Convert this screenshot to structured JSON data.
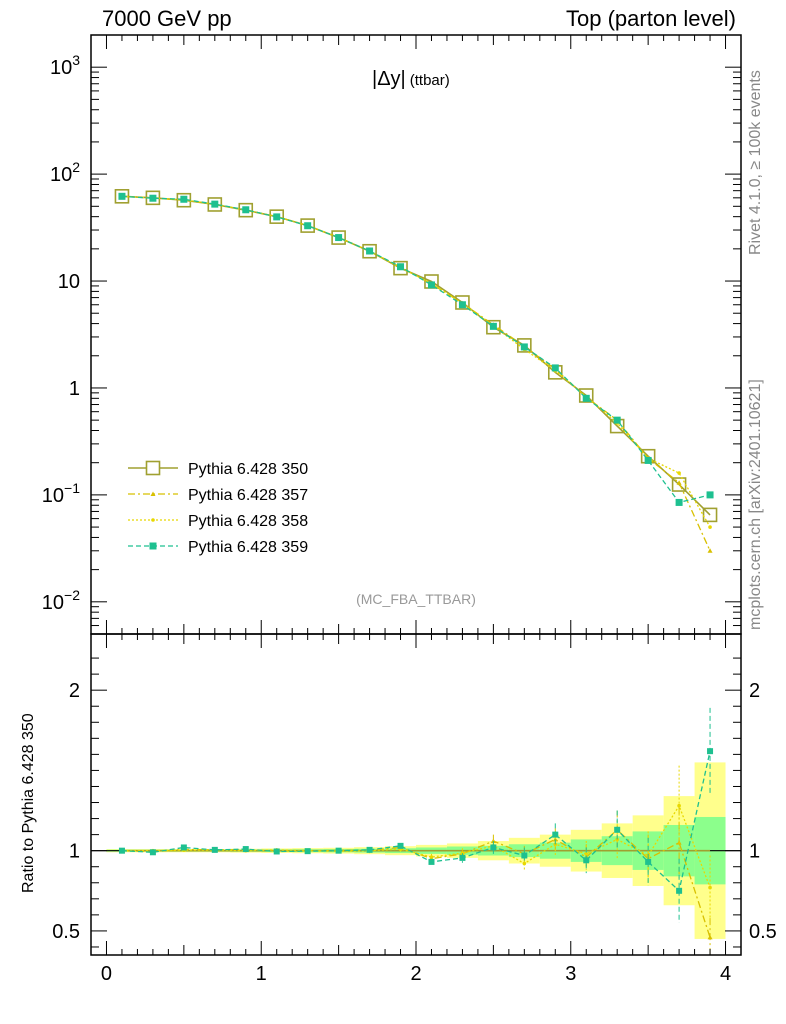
{
  "header": {
    "left": "7000 GeV pp",
    "right": "Top (parton level)"
  },
  "side_labels": {
    "rivet": "Rivet 4.1.0, ≥ 100k events",
    "mcplots": "mcplots.cern.ch [arXiv:2401.10621]"
  },
  "plot": {
    "title": "|Δy|",
    "title_suffix": "(ttbar)",
    "analysis": "(MC_FBA_TTBAR)"
  },
  "ratio": {
    "ylabel": "Ratio to Pythia 6.428 350"
  },
  "legend": [
    {
      "label": "Pythia 6.428 350"
    },
    {
      "label": "Pythia 6.428 357"
    },
    {
      "label": "Pythia 6.428 358"
    },
    {
      "label": "Pythia 6.428 359"
    }
  ],
  "chart_data": {
    "type": "line",
    "xlim": [
      -0.1,
      4.1
    ],
    "ylim_main": [
      0.005,
      2000
    ],
    "yscale_main": "log",
    "ylim_ratio": [
      0.35,
      2.35
    ],
    "x_ticks": [
      "0",
      "1",
      "2",
      "3",
      "4"
    ],
    "y_ticks_main": [
      {
        "v": 1000,
        "base": "10",
        "exp": "3"
      },
      {
        "v": 100,
        "base": "10",
        "exp": "2"
      },
      {
        "v": 10,
        "base": "10",
        "exp": ""
      },
      {
        "v": 1,
        "base": "1",
        "exp": ""
      },
      {
        "v": 0.1,
        "base": "10",
        "exp": "−1"
      },
      {
        "v": 0.01,
        "base": "10",
        "exp": "−2"
      }
    ],
    "y_ticks_ratio": [
      {
        "v": 2,
        "label": "2"
      },
      {
        "v": 1,
        "label": "1"
      },
      {
        "v": 0.5,
        "label": "0.5"
      }
    ],
    "x": [
      0.1,
      0.3,
      0.5,
      0.7,
      0.9,
      1.1,
      1.3,
      1.5,
      1.7,
      1.9,
      2.1,
      2.3,
      2.5,
      2.7,
      2.9,
      3.1,
      3.3,
      3.5,
      3.7,
      3.9
    ],
    "series": [
      {
        "name": "Pythia 6.428 350",
        "color": "#a0a030",
        "style": "solid",
        "marker": "open-square",
        "values": [
          62,
          60,
          57,
          52,
          46,
          40,
          33,
          25.5,
          19,
          13.2,
          9.9,
          6.3,
          3.7,
          2.5,
          1.4,
          0.85,
          0.44,
          0.23,
          0.125,
          0.065
        ]
      },
      {
        "name": "Pythia 6.428 357",
        "color": "#d8c000",
        "style": "dashdot",
        "marker": "small-triangle",
        "values": [
          62,
          59.6,
          57.4,
          52.3,
          46.2,
          40,
          33,
          25.6,
          19.1,
          13.5,
          9.4,
          6.2,
          3.9,
          2.45,
          1.5,
          0.82,
          0.5,
          0.22,
          0.13,
          0.03
        ],
        "ratio": [
          1.0,
          0.993,
          1.008,
          1.006,
          1.005,
          0.998,
          0.998,
          1.002,
          1.003,
          1.02,
          0.95,
          0.98,
          1.06,
          0.98,
          1.07,
          0.96,
          1.13,
          0.95,
          1.05,
          0.46
        ],
        "ratio_err": [
          0.01,
          0.01,
          0.01,
          0.01,
          0.01,
          0.01,
          0.01,
          0.01,
          0.015,
          0.015,
          0.02,
          0.03,
          0.04,
          0.05,
          0.07,
          0.08,
          0.12,
          0.15,
          0.22,
          0.12
        ]
      },
      {
        "name": "Pythia 6.428 358",
        "color": "#e8d800",
        "style": "dotted",
        "marker": "small-dot",
        "values": [
          62,
          60,
          57.2,
          52.2,
          46,
          40.2,
          33,
          25.4,
          19,
          13.3,
          9.5,
          6.2,
          3.8,
          2.3,
          1.45,
          0.83,
          0.47,
          0.22,
          0.16,
          0.05
        ],
        "ratio": [
          1.0,
          1.0,
          1.003,
          1.004,
          1.0,
          1.005,
          1.0,
          0.996,
          1.0,
          1.01,
          0.96,
          0.985,
          1.03,
          0.92,
          1.04,
          0.98,
          1.07,
          0.97,
          1.28,
          0.77
        ],
        "ratio_err": [
          0.01,
          0.01,
          0.01,
          0.01,
          0.01,
          0.01,
          0.01,
          0.01,
          0.015,
          0.015,
          0.02,
          0.03,
          0.04,
          0.05,
          0.07,
          0.08,
          0.12,
          0.15,
          0.25,
          0.2
        ]
      },
      {
        "name": "Pythia 6.428 359",
        "color": "#1ec090",
        "style": "dashed",
        "marker": "filled-square",
        "values": [
          62,
          59.5,
          58.2,
          52.4,
          46.4,
          39.8,
          32.9,
          25.5,
          19.1,
          13.6,
          9.2,
          6.0,
          3.77,
          2.42,
          1.54,
          0.8,
          0.5,
          0.21,
          0.085,
          0.1
        ],
        "ratio": [
          1.0,
          0.99,
          1.02,
          1.005,
          1.01,
          0.995,
          0.997,
          1.0,
          1.005,
          1.03,
          0.93,
          0.955,
          1.02,
          0.97,
          1.1,
          0.94,
          1.13,
          0.93,
          0.75,
          1.62
        ],
        "ratio_err": [
          0.01,
          0.01,
          0.01,
          0.01,
          0.01,
          0.01,
          0.01,
          0.01,
          0.015,
          0.015,
          0.02,
          0.03,
          0.04,
          0.05,
          0.07,
          0.08,
          0.12,
          0.15,
          0.2,
          0.27
        ]
      }
    ],
    "ratio_bands": {
      "green_halfwidth": [
        0.006,
        0.006,
        0.006,
        0.006,
        0.007,
        0.008,
        0.009,
        0.01,
        0.012,
        0.015,
        0.02,
        0.026,
        0.03,
        0.04,
        0.05,
        0.07,
        0.09,
        0.12,
        0.16,
        0.21
      ],
      "yellow_halfwidth": [
        0.01,
        0.01,
        0.01,
        0.01,
        0.012,
        0.014,
        0.016,
        0.018,
        0.022,
        0.028,
        0.036,
        0.045,
        0.06,
        0.08,
        0.1,
        0.13,
        0.17,
        0.22,
        0.34,
        0.55
      ],
      "green_color": "#8cff8c",
      "yellow_color": "#ffff8c"
    }
  }
}
